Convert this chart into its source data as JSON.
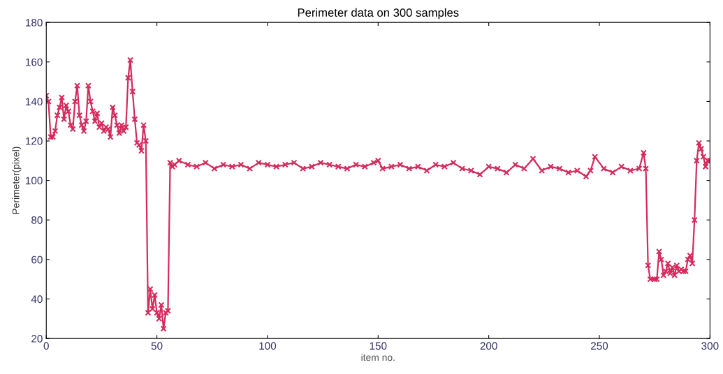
{
  "chart_data": {
    "type": "line",
    "title": "Perimeter data on 300 samples",
    "xlabel": "item no.",
    "ylabel": "Perimeter(pixel)",
    "xlim": [
      0,
      300
    ],
    "xticks": [
      0,
      50,
      100,
      150,
      200,
      250,
      300
    ],
    "ylim": [
      20,
      180
    ],
    "yticks": [
      20,
      40,
      60,
      80,
      100,
      120,
      140,
      160,
      180
    ],
    "grid": false,
    "marker": "cross",
    "line_style": "solid",
    "series": [
      {
        "color": "#d42a5c",
        "x": [
          0,
          1,
          2,
          3,
          4,
          5,
          6,
          7,
          8,
          9,
          10,
          11,
          12,
          13,
          14,
          15,
          16,
          17,
          18,
          19,
          20,
          21,
          22,
          23,
          24,
          25,
          26,
          27,
          28,
          29,
          30,
          31,
          32,
          33,
          34,
          35,
          36,
          37,
          38,
          39,
          40,
          41,
          42,
          43,
          44,
          45,
          46,
          47,
          48,
          49,
          50,
          51,
          52,
          53,
          54,
          55,
          56,
          57,
          58,
          60,
          64,
          68,
          72,
          76,
          80,
          84,
          88,
          92,
          96,
          100,
          104,
          108,
          112,
          116,
          120,
          124,
          128,
          132,
          136,
          140,
          144,
          148,
          150,
          152,
          156,
          160,
          164,
          168,
          172,
          176,
          180,
          184,
          188,
          192,
          196,
          200,
          204,
          208,
          212,
          216,
          220,
          224,
          228,
          232,
          236,
          240,
          244,
          246,
          248,
          252,
          256,
          260,
          264,
          268,
          270,
          271,
          272,
          273,
          275,
          276,
          277,
          278,
          279,
          280,
          281,
          282,
          283,
          284,
          285,
          286,
          287,
          288,
          289,
          290,
          291,
          292,
          293,
          294,
          295,
          296,
          297,
          298,
          299,
          300
        ],
        "values": [
          143,
          140,
          122,
          122,
          125,
          133,
          137,
          142,
          131,
          138,
          135,
          128,
          126,
          140,
          148,
          133,
          128,
          125,
          130,
          148,
          140,
          135,
          130,
          134,
          127,
          129,
          125,
          127,
          126,
          122,
          137,
          133,
          128,
          124,
          128,
          125,
          127,
          152,
          161,
          145,
          131,
          119,
          118,
          115,
          128,
          120,
          33,
          45,
          35,
          42,
          33,
          30,
          37,
          25,
          33,
          34,
          109,
          107,
          108,
          110,
          108,
          107,
          109,
          106,
          108,
          107,
          108,
          106,
          109,
          108,
          107,
          108,
          109,
          106,
          107,
          109,
          108,
          107,
          106,
          108,
          107,
          109,
          110,
          106,
          107,
          108,
          106,
          107,
          105,
          108,
          107,
          109,
          106,
          105,
          103,
          107,
          106,
          104,
          108,
          106,
          111,
          105,
          107,
          106,
          104,
          105,
          102,
          105,
          112,
          106,
          104,
          107,
          105,
          106,
          114,
          106,
          57,
          50,
          50,
          50,
          64,
          60,
          52,
          54,
          58,
          53,
          56,
          52,
          57,
          54,
          55,
          54,
          54,
          60,
          62,
          58,
          80,
          110,
          119,
          116,
          112,
          107,
          110,
          110
        ]
      }
    ]
  }
}
